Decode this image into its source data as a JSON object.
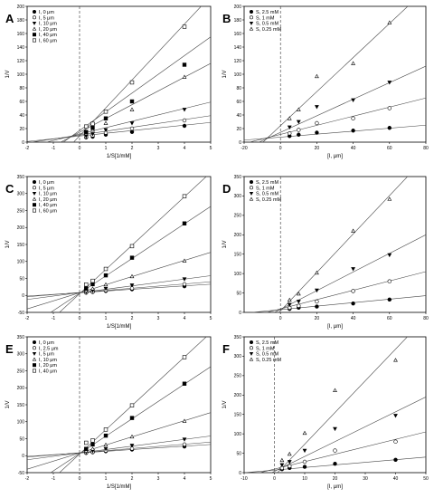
{
  "chart_data": [
    {
      "type": "scatter",
      "panel_label": "A",
      "xlabel": "1/S[1/mM]",
      "ylabel": "1/V",
      "xlim": [
        -2,
        5
      ],
      "ylim": [
        0,
        200
      ],
      "xticks": [
        -2,
        -1,
        0,
        1,
        2,
        3,
        4,
        5
      ],
      "yticks": [
        0,
        20,
        40,
        60,
        80,
        100,
        120,
        140,
        160,
        180,
        200
      ],
      "vline": 0,
      "legend_position": "top-left",
      "series": [
        {
          "name": "I, 0 μm",
          "marker": "circle-filled",
          "x": [
            0.25,
            0.5,
            1,
            2,
            4
          ],
          "y": [
            7,
            8,
            11,
            15,
            24
          ],
          "fit": [
            [
              -2,
              1
            ],
            [
              5,
              29
            ]
          ]
        },
        {
          "name": "I, 5 μm",
          "marker": "circle-open",
          "x": [
            0.25,
            0.5,
            1,
            2,
            4
          ],
          "y": [
            8,
            10,
            14,
            20,
            32
          ],
          "fit": [
            [
              -2,
              -1
            ],
            [
              5,
              39
            ]
          ]
        },
        {
          "name": "I, 10 μm",
          "marker": "triangle-down-filled",
          "x": [
            0.25,
            0.5,
            1,
            2,
            4
          ],
          "y": [
            9,
            12,
            18,
            28,
            48
          ],
          "fit": [
            [
              -2,
              -7
            ],
            [
              5,
              59
            ]
          ]
        },
        {
          "name": "I, 20 μm",
          "marker": "triangle-open",
          "x": [
            0.25,
            0.5,
            1,
            2,
            4
          ],
          "y": [
            13,
            18,
            28,
            48,
            96
          ],
          "fit": [
            [
              -2,
              -26
            ],
            [
              5,
              116
            ]
          ]
        },
        {
          "name": "I, 40 μm",
          "marker": "square-filled",
          "x": [
            0.25,
            0.5,
            1,
            2,
            4
          ],
          "y": [
            15,
            21,
            35,
            60,
            114
          ],
          "fit": [
            [
              -2,
              -38
            ],
            [
              5,
              155
            ]
          ]
        },
        {
          "name": "I, 60 μm",
          "marker": "square-open",
          "x": [
            0.25,
            0.5,
            1,
            2,
            4
          ],
          "y": [
            23,
            27,
            45,
            88,
            170
          ],
          "fit": [
            [
              -2,
              -73
            ],
            [
              5,
              215
            ]
          ]
        }
      ]
    },
    {
      "type": "scatter",
      "panel_label": "B",
      "xlabel": "[I, μm]",
      "ylabel": "1/V",
      "xlim": [
        -20,
        80
      ],
      "ylim": [
        0,
        200
      ],
      "xticks": [
        -20,
        0,
        20,
        40,
        60,
        80
      ],
      "yticks": [
        0,
        20,
        40,
        60,
        80,
        100,
        120,
        140,
        160,
        180,
        200
      ],
      "vline": 0,
      "legend_position": "top-left",
      "series": [
        {
          "name": "S, 2.5 mM",
          "marker": "circle-filled",
          "x": [
            5,
            10,
            20,
            40,
            60
          ],
          "y": [
            9,
            11,
            14,
            17,
            21
          ],
          "fit": [
            [
              -20,
              3
            ],
            [
              80,
              25
            ]
          ]
        },
        {
          "name": "S, 1 mM",
          "marker": "circle-open",
          "x": [
            5,
            10,
            20,
            40,
            60
          ],
          "y": [
            13,
            18,
            28,
            35,
            50
          ],
          "fit": [
            [
              -20,
              -2
            ],
            [
              80,
              65
            ]
          ]
        },
        {
          "name": "S, 0.5 mM",
          "marker": "triangle-down-filled",
          "x": [
            5,
            10,
            20,
            40,
            60
          ],
          "y": [
            22,
            30,
            52,
            62,
            88
          ],
          "fit": [
            [
              -20,
              -10
            ],
            [
              80,
              112
            ]
          ]
        },
        {
          "name": "S, 0.25 mM",
          "marker": "triangle-open",
          "x": [
            5,
            10,
            20,
            40,
            60
          ],
          "y": [
            35,
            48,
            97,
            116,
            176
          ],
          "fit": [
            [
              -20,
              -26
            ],
            [
              80,
              225
            ]
          ]
        }
      ]
    },
    {
      "type": "scatter",
      "panel_label": "C",
      "xlabel": "1/S[1/mM]",
      "ylabel": "1/V",
      "xlim": [
        -2,
        5
      ],
      "ylim": [
        -50,
        350
      ],
      "xticks": [
        -2,
        -1,
        0,
        1,
        2,
        3,
        4,
        5
      ],
      "yticks": [
        -50,
        0,
        50,
        100,
        150,
        200,
        250,
        300,
        350
      ],
      "vline": 0,
      "legend_position": "top-left",
      "series": [
        {
          "name": "I, 0 μm",
          "marker": "circle-filled",
          "x": [
            0.25,
            0.5,
            1,
            2,
            4
          ],
          "y": [
            8,
            10,
            13,
            18,
            27
          ],
          "fit": [
            [
              -2,
              -2
            ],
            [
              5,
              33
            ]
          ]
        },
        {
          "name": "I, 5 μm",
          "marker": "circle-open",
          "x": [
            0.25,
            0.5,
            1,
            2,
            4
          ],
          "y": [
            9,
            11,
            15,
            21,
            33
          ],
          "fit": [
            [
              -2,
              -4
            ],
            [
              5,
              40
            ]
          ]
        },
        {
          "name": "I, 10 μm",
          "marker": "triangle-down-filled",
          "x": [
            0.25,
            0.5,
            1,
            2,
            4
          ],
          "y": [
            11,
            14,
            20,
            30,
            48
          ],
          "fit": [
            [
              -2,
              -12
            ],
            [
              5,
              58
            ]
          ]
        },
        {
          "name": "I, 20 μm",
          "marker": "triangle-open",
          "x": [
            0.25,
            0.5,
            1,
            2,
            4
          ],
          "y": [
            14,
            20,
            32,
            56,
            102
          ],
          "fit": [
            [
              -2,
              -40
            ],
            [
              5,
              127
            ]
          ]
        },
        {
          "name": "I, 40 μm",
          "marker": "square-filled",
          "x": [
            0.25,
            0.5,
            1,
            2,
            4
          ],
          "y": [
            20,
            33,
            59,
            111,
            212
          ],
          "fit": [
            [
              -2,
              -96
            ],
            [
              5,
              262
            ]
          ]
        },
        {
          "name": "I, 60 μm",
          "marker": "square-open",
          "x": [
            0.25,
            0.5,
            1,
            2,
            4
          ],
          "y": [
            32,
            43,
            78,
            145,
            292
          ],
          "fit": [
            [
              -2,
              -138
            ],
            [
              5,
              362
            ]
          ]
        }
      ]
    },
    {
      "type": "scatter",
      "panel_label": "D",
      "xlabel": "[I, μm]",
      "ylabel": "1/V",
      "xlim": [
        -20,
        80
      ],
      "ylim": [
        0,
        350
      ],
      "xticks": [
        0,
        20,
        40,
        60,
        80
      ],
      "yticks": [
        0,
        50,
        100,
        150,
        200,
        250,
        300,
        350
      ],
      "vline": 0,
      "legend_position": "top-left",
      "series": [
        {
          "name": "S, 2.5 mM",
          "marker": "circle-filled",
          "x": [
            5,
            10,
            20,
            40,
            60
          ],
          "y": [
            9,
            12,
            15,
            23,
            33
          ],
          "fit": [
            [
              -20,
              -2
            ],
            [
              80,
              43
            ]
          ]
        },
        {
          "name": "S, 1 mM",
          "marker": "circle-open",
          "x": [
            5,
            10,
            20,
            40,
            60
          ],
          "y": [
            12,
            17,
            28,
            55,
            80
          ],
          "fit": [
            [
              -20,
              -15
            ],
            [
              80,
              105
            ]
          ]
        },
        {
          "name": "S, 0.5 mM",
          "marker": "triangle-down-filled",
          "x": [
            5,
            10,
            20,
            40,
            60
          ],
          "y": [
            20,
            28,
            57,
            112,
            148
          ],
          "fit": [
            [
              -20,
              -40
            ],
            [
              80,
              200
            ]
          ]
        },
        {
          "name": "S, 0.25 mM",
          "marker": "triangle-open",
          "x": [
            5,
            10,
            20,
            40,
            60
          ],
          "y": [
            32,
            48,
            102,
            210,
            292
          ],
          "fit": [
            [
              -20,
              -95
            ],
            [
              80,
              400
            ]
          ]
        }
      ]
    },
    {
      "type": "scatter",
      "panel_label": "E",
      "xlabel": "1/S[1/mM]",
      "ylabel": "1/V",
      "xlim": [
        -2,
        5
      ],
      "ylim": [
        -50,
        350
      ],
      "xticks": [
        -2,
        -1,
        0,
        1,
        2,
        3,
        4,
        5
      ],
      "yticks": [
        -50,
        0,
        50,
        100,
        150,
        200,
        250,
        300,
        350
      ],
      "vline": 0,
      "legend_position": "top-left",
      "series": [
        {
          "name": "I, 0 μm",
          "marker": "circle-filled",
          "x": [
            0.25,
            0.5,
            1,
            2,
            4
          ],
          "y": [
            8,
            10,
            13,
            18,
            27
          ],
          "fit": [
            [
              -2,
              -2
            ],
            [
              5,
              33
            ]
          ]
        },
        {
          "name": "I, 2.5 μm",
          "marker": "circle-open",
          "x": [
            0.25,
            0.5,
            1,
            2,
            4
          ],
          "y": [
            9,
            11,
            15,
            21,
            33
          ],
          "fit": [
            [
              -2,
              -4
            ],
            [
              5,
              40
            ]
          ]
        },
        {
          "name": "I, 5 μm",
          "marker": "triangle-down-filled",
          "x": [
            0.25,
            0.5,
            1,
            2,
            4
          ],
          "y": [
            11,
            14,
            20,
            30,
            48
          ],
          "fit": [
            [
              -2,
              -12
            ],
            [
              5,
              58
            ]
          ]
        },
        {
          "name": "I, 10 μm",
          "marker": "triangle-open",
          "x": [
            0.25,
            0.5,
            1,
            2,
            4
          ],
          "y": [
            14,
            20,
            32,
            56,
            102
          ],
          "fit": [
            [
              -2,
              -40
            ],
            [
              5,
              127
            ]
          ]
        },
        {
          "name": "I, 20 μm",
          "marker": "square-filled",
          "x": [
            0.25,
            0.5,
            1,
            2,
            4
          ],
          "y": [
            20,
            33,
            59,
            111,
            212
          ],
          "fit": [
            [
              -2,
              -96
            ],
            [
              5,
              262
            ]
          ]
        },
        {
          "name": "I, 40 μm",
          "marker": "square-open",
          "x": [
            0.25,
            0.5,
            1,
            2,
            4
          ],
          "y": [
            38,
            45,
            77,
            148,
            290
          ],
          "fit": [
            [
              -2,
              -138
            ],
            [
              5,
              362
            ]
          ]
        }
      ]
    },
    {
      "type": "scatter",
      "panel_label": "F",
      "xlabel": "[I, μm]",
      "ylabel": "1/V",
      "xlim": [
        -10,
        50
      ],
      "ylim": [
        0,
        350
      ],
      "xticks": [
        -10,
        0,
        10,
        20,
        30,
        40,
        50
      ],
      "yticks": [
        0,
        50,
        100,
        150,
        200,
        250,
        300,
        350
      ],
      "vline": 0,
      "legend_position": "top-left",
      "series": [
        {
          "name": "S, 2.5 mM",
          "marker": "circle-filled",
          "x": [
            2.5,
            5,
            10,
            20,
            40
          ],
          "y": [
            9,
            12,
            15,
            23,
            33
          ],
          "fit": [
            [
              -10,
              0
            ],
            [
              50,
              40
            ]
          ]
        },
        {
          "name": "S, 1 mM",
          "marker": "circle-open",
          "x": [
            2.5,
            5,
            10,
            20,
            40
          ],
          "y": [
            12,
            17,
            28,
            57,
            80
          ],
          "fit": [
            [
              -10,
              -10
            ],
            [
              50,
              105
            ]
          ]
        },
        {
          "name": "S, 0.5 mM",
          "marker": "triangle-down-filled",
          "x": [
            2.5,
            5,
            10,
            20,
            40
          ],
          "y": [
            20,
            28,
            57,
            113,
            147
          ],
          "fit": [
            [
              -10,
              -35
            ],
            [
              50,
              195
            ]
          ]
        },
        {
          "name": "S, 0.25 mM",
          "marker": "triangle-open",
          "x": [
            2.5,
            5,
            10,
            20,
            40
          ],
          "y": [
            32,
            48,
            102,
            212,
            290
          ],
          "fit": [
            [
              -10,
              -90
            ],
            [
              50,
              400
            ]
          ]
        }
      ]
    }
  ]
}
